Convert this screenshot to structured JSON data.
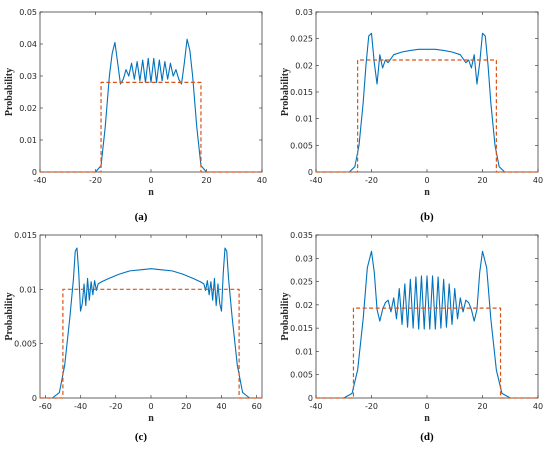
{
  "colors": {
    "quantum": "#0072BD",
    "classical": "#D95319",
    "axis": "#262626"
  },
  "chart_data": [
    {
      "caption": "(a)",
      "type": "line",
      "xlabel": "n",
      "ylabel": "Probability",
      "xlim": [
        -40,
        40
      ],
      "ylim": [
        0,
        0.05
      ],
      "xticks": [
        "-40",
        "-20",
        "0",
        "20",
        "40"
      ],
      "yticks": [
        "0",
        "0.01",
        "0.02",
        "0.03",
        "0.04",
        "0.05"
      ],
      "xtick_values": [
        -40,
        -20,
        0,
        20,
        40
      ],
      "ytick_values": [
        0,
        0.01,
        0.02,
        0.03,
        0.04,
        0.05
      ],
      "series": [
        {
          "style": "solid",
          "x": [
            -20,
            -18,
            -16.5,
            -15,
            -14,
            -13,
            -12,
            -11,
            -10,
            -9,
            -8,
            -7,
            -6,
            -5,
            -4,
            -3,
            -2,
            -1,
            0,
            1,
            2,
            3,
            4,
            5,
            6,
            7,
            8,
            9,
            10,
            11,
            12,
            13,
            14,
            15,
            16.5,
            18,
            20
          ],
          "y": [
            0,
            0.002,
            0.014,
            0.03,
            0.037,
            0.0405,
            0.034,
            0.0275,
            0.029,
            0.032,
            0.03,
            0.034,
            0.029,
            0.0345,
            0.0285,
            0.035,
            0.028,
            0.0355,
            0.028,
            0.0355,
            0.028,
            0.035,
            0.0285,
            0.0345,
            0.029,
            0.034,
            0.03,
            0.032,
            0.029,
            0.0275,
            0.034,
            0.0415,
            0.038,
            0.03,
            0.014,
            0.002,
            0
          ]
        },
        {
          "style": "dashed",
          "x": [
            -40,
            -18,
            -18,
            18,
            18,
            40
          ],
          "y": [
            0,
            0,
            0.028,
            0.028,
            0,
            0
          ]
        }
      ]
    },
    {
      "caption": "(b)",
      "type": "line",
      "xlabel": "n",
      "ylabel": "Probability",
      "xlim": [
        -40,
        40
      ],
      "ylim": [
        0,
        0.03
      ],
      "xticks": [
        "-40",
        "-20",
        "0",
        "20",
        "40"
      ],
      "yticks": [
        "0",
        "0.005",
        "0.01",
        "0.015",
        "0.02",
        "0.025",
        "0.03"
      ],
      "xtick_values": [
        -40,
        -20,
        0,
        20,
        40
      ],
      "ytick_values": [
        0,
        0.005,
        0.01,
        0.015,
        0.02,
        0.025,
        0.03
      ],
      "series": [
        {
          "style": "solid",
          "x": [
            -28,
            -26,
            -24.5,
            -23,
            -22,
            -21,
            -20,
            -19,
            -18,
            -17,
            -16,
            -15,
            -14,
            -12,
            -9,
            -6,
            -3,
            0,
            3,
            6,
            9,
            12,
            14,
            15,
            16,
            17,
            18,
            19,
            20,
            21,
            22,
            23,
            24.5,
            26,
            28
          ],
          "y": [
            0,
            0.001,
            0.005,
            0.013,
            0.02,
            0.0255,
            0.026,
            0.0205,
            0.0165,
            0.022,
            0.0195,
            0.021,
            0.0205,
            0.022,
            0.0225,
            0.0228,
            0.023,
            0.023,
            0.023,
            0.0228,
            0.0225,
            0.022,
            0.0205,
            0.021,
            0.0195,
            0.022,
            0.0165,
            0.0205,
            0.026,
            0.0255,
            0.02,
            0.013,
            0.005,
            0.001,
            0
          ]
        },
        {
          "style": "dashed",
          "x": [
            -40,
            -25,
            -25,
            25,
            25,
            40
          ],
          "y": [
            0,
            0,
            0.021,
            0.021,
            0,
            0
          ]
        }
      ]
    },
    {
      "caption": "(c)",
      "type": "line",
      "xlabel": "n",
      "ylabel": "Probability",
      "xlim": [
        -63,
        63
      ],
      "ylim": [
        0,
        0.015
      ],
      "xticks": [
        "-60",
        "-40",
        "-20",
        "0",
        "20",
        "40",
        "60"
      ],
      "yticks": [
        "0",
        "0.005",
        "0.01",
        "0.015"
      ],
      "xtick_values": [
        -60,
        -40,
        -20,
        0,
        20,
        40,
        60
      ],
      "ytick_values": [
        0,
        0.005,
        0.01,
        0.015
      ],
      "series": [
        {
          "style": "solid",
          "x": [
            -56,
            -52,
            -49,
            -46,
            -44,
            -43,
            -42,
            -41,
            -40,
            -39,
            -38,
            -37,
            -36,
            -35,
            -34,
            -33,
            -32,
            -31,
            -30,
            -28,
            -24,
            -18,
            -12,
            -6,
            0,
            6,
            12,
            18,
            24,
            28,
            30,
            31,
            32,
            33,
            34,
            35,
            36,
            37,
            38,
            39,
            40,
            41,
            42,
            43,
            44,
            46,
            49,
            52,
            56
          ],
          "y": [
            0,
            0.0005,
            0.003,
            0.0075,
            0.011,
            0.0135,
            0.0138,
            0.0115,
            0.008,
            0.0087,
            0.0105,
            0.0085,
            0.011,
            0.009,
            0.0107,
            0.0095,
            0.0108,
            0.0099,
            0.0105,
            0.0107,
            0.011,
            0.0114,
            0.0117,
            0.0118,
            0.0119,
            0.0118,
            0.0117,
            0.0114,
            0.011,
            0.0107,
            0.0105,
            0.0099,
            0.0108,
            0.0095,
            0.0107,
            0.009,
            0.011,
            0.0085,
            0.0105,
            0.0087,
            0.008,
            0.0115,
            0.0138,
            0.0135,
            0.011,
            0.0075,
            0.003,
            0.0005,
            0
          ]
        },
        {
          "style": "dashed",
          "x": [
            -63,
            -50,
            -50,
            50,
            50,
            63
          ],
          "y": [
            0,
            0,
            0.01,
            0.01,
            0,
            0
          ]
        }
      ]
    },
    {
      "caption": "(d)",
      "type": "line",
      "xlabel": "n",
      "ylabel": "Probability",
      "xlim": [
        -40,
        40
      ],
      "ylim": [
        0,
        0.035
      ],
      "xticks": [
        "-40",
        "-20",
        "0",
        "20",
        "40"
      ],
      "yticks": [
        "0",
        "0.005",
        "0.01",
        "0.015",
        "0.02",
        "0.025",
        "0.03",
        "0.035"
      ],
      "xtick_values": [
        -40,
        -20,
        0,
        20,
        40
      ],
      "ytick_values": [
        0,
        0.005,
        0.01,
        0.015,
        0.02,
        0.025,
        0.03,
        0.035
      ],
      "series": [
        {
          "style": "solid",
          "x": [
            -30,
            -27,
            -25,
            -23,
            -21.5,
            -20,
            -19,
            -18,
            -17,
            -16,
            -15,
            -14,
            -13,
            -12,
            -11,
            -10,
            -9,
            -8,
            -7,
            -6,
            -5,
            -4,
            -3,
            -2,
            -1,
            0,
            1,
            2,
            3,
            4,
            5,
            6,
            7,
            8,
            9,
            10,
            11,
            12,
            13,
            14,
            15,
            16,
            17,
            18,
            19,
            20,
            21.5,
            23,
            25,
            27,
            30
          ],
          "y": [
            0,
            0.001,
            0.006,
            0.017,
            0.028,
            0.0315,
            0.027,
            0.019,
            0.0165,
            0.019,
            0.0205,
            0.021,
            0.0185,
            0.0215,
            0.017,
            0.0235,
            0.0158,
            0.0245,
            0.0152,
            0.0255,
            0.015,
            0.026,
            0.0148,
            0.0262,
            0.0148,
            0.0262,
            0.0148,
            0.0262,
            0.0148,
            0.026,
            0.015,
            0.0255,
            0.0152,
            0.0245,
            0.0158,
            0.0235,
            0.017,
            0.0215,
            0.0185,
            0.021,
            0.0205,
            0.019,
            0.0165,
            0.019,
            0.027,
            0.0315,
            0.028,
            0.017,
            0.006,
            0.001,
            0
          ]
        },
        {
          "style": "dashed",
          "x": [
            -40,
            -26.5,
            -26.5,
            26.5,
            26.5,
            40
          ],
          "y": [
            0,
            0,
            0.0193,
            0.0193,
            0,
            0
          ]
        }
      ]
    }
  ]
}
